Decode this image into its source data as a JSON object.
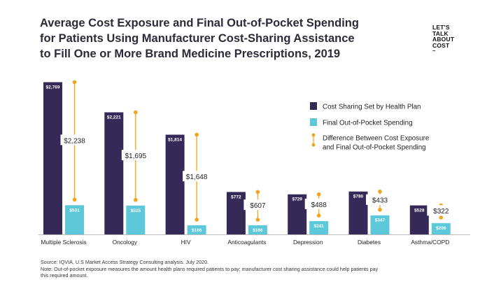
{
  "title": {
    "lines": [
      "Average Cost Exposure and Final Out-of-Pocket Spending",
      "for Patients Using Manufacturer Cost-Sharing Assistance",
      "to Fill One or More Brand Medicine Prescriptions, 2019"
    ]
  },
  "logo": {
    "lines": [
      "LET'S",
      "TALK",
      "ABOUT",
      "COST"
    ],
    "mark": "–"
  },
  "colors": {
    "cost_sharing": "#352a57",
    "out_of_pocket": "#5cc8da",
    "difference": "#f2a31b"
  },
  "chart_data": {
    "type": "bar",
    "categories": [
      "Multiple Sclerosis",
      "Oncology",
      "HIV",
      "Anticoagulants",
      "Depression",
      "Diabetes",
      "Asthma/COPD"
    ],
    "series": [
      {
        "name": "Cost Sharing Set by Health Plan",
        "color": "#352a57",
        "values": [
          2769,
          2221,
          1814,
          772,
          729,
          780,
          528
        ],
        "labels": [
          "$2,769",
          "$2,221",
          "$1,814",
          "$772",
          "$729",
          "$780",
          "$528"
        ]
      },
      {
        "name": "Final Out-of-Pocket Spending",
        "color": "#5cc8da",
        "values": [
          531,
          525,
          166,
          166,
          241,
          347,
          206
        ],
        "labels": [
          "$531",
          "$525",
          "$166",
          "$166",
          "$241",
          "$347",
          "$206"
        ]
      }
    ],
    "difference": {
      "name": "Difference Between Cost Exposure and Final Out-of-Pocket Spending",
      "color": "#f2a31b",
      "values": [
        2238,
        1695,
        1648,
        607,
        488,
        433,
        322
      ],
      "labels": [
        "$2,238",
        "$1,695",
        "$1,648",
        "$607",
        "$488",
        "$433",
        "$322"
      ]
    },
    "ylim": [
      0,
      2800
    ],
    "grid": false,
    "legend": {
      "position": "right",
      "items": [
        {
          "lines": [
            "Cost Sharing Set by Health Plan"
          ],
          "marker": "bar",
          "color": "#352a57"
        },
        {
          "lines": [
            "Final Out-of-Pocket Spending"
          ],
          "marker": "bar",
          "color": "#5cc8da"
        },
        {
          "lines": [
            "Difference Between Cost Exposure",
            "and Final Out-of-Pocket Spending"
          ],
          "marker": "dumbbell",
          "color": "#f2a31b"
        }
      ]
    }
  },
  "footer": {
    "source": "Source: IQVIA, U.S Market Access Strategy Consulting analysis. July 2020.",
    "note_lines": [
      "Note: Out-of-pocket exposure measures the amount health plans required patients to pay; manufacturer cost sharing assistance could help patients pay",
      "this required amount."
    ]
  }
}
